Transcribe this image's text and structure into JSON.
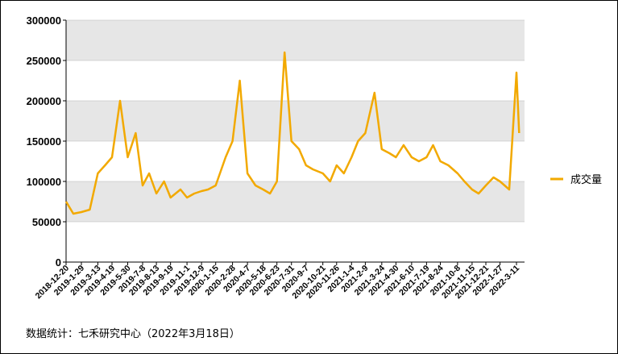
{
  "source_note": "数据统计：七禾研究中心（2022年3月18日）",
  "legend": [
    {
      "label": "成交量",
      "color": "#F2A900"
    }
  ],
  "chart_data": {
    "type": "line",
    "title": "",
    "xlabel": "",
    "ylabel": "",
    "ylim": [
      0,
      300000
    ],
    "yticks": [
      0,
      50000,
      100000,
      150000,
      200000,
      250000,
      300000
    ],
    "ytick_labels": [
      "0",
      "50000",
      "100000",
      "150000",
      "200000",
      "250000",
      "300000"
    ],
    "grid": "horizontal bands",
    "legend_position": "right",
    "xticks": [
      "2018-12-20",
      "2019-1-29",
      "2019-3-13",
      "2019-4-19",
      "2019-5-30",
      "2019-7-8",
      "2019-8-13",
      "2019-9-19",
      "2019-11-1",
      "2019-12-9",
      "2020-1-15",
      "2020-2-28",
      "2020-4-7",
      "2020-5-18",
      "2020-6-23",
      "2020-7-31",
      "2020-9-7",
      "2020-10-21",
      "2020-11-26",
      "2021-1-4",
      "2021-2-9",
      "2021-3-24",
      "2021-4-30",
      "2021-6-10",
      "2021-7-19",
      "2021-8-24",
      "2021-10-8",
      "2021-11-15",
      "2021-12-21",
      "2022-1-27",
      "2022-3-11"
    ],
    "series": [
      {
        "name": "成交量",
        "color": "#F2A900",
        "x": [
          "2018-12-20",
          "2019-1-8",
          "2019-1-29",
          "2019-2-20",
          "2019-3-13",
          "2019-4-1",
          "2019-4-19",
          "2019-5-10",
          "2019-5-30",
          "2019-6-20",
          "2019-7-8",
          "2019-7-25",
          "2019-8-13",
          "2019-9-2",
          "2019-9-19",
          "2019-10-15",
          "2019-11-1",
          "2019-11-20",
          "2019-12-9",
          "2019-12-26",
          "2020-1-15",
          "2020-2-10",
          "2020-2-28",
          "2020-3-18",
          "2020-4-7",
          "2020-4-28",
          "2020-5-18",
          "2020-6-5",
          "2020-6-23",
          "2020-7-13",
          "2020-7-31",
          "2020-8-20",
          "2020-9-7",
          "2020-9-25",
          "2020-10-21",
          "2020-11-9",
          "2020-11-26",
          "2020-12-15",
          "2021-1-4",
          "2021-1-21",
          "2021-2-9",
          "2021-3-5",
          "2021-3-24",
          "2021-4-13",
          "2021-4-30",
          "2021-5-20",
          "2021-6-10",
          "2021-6-29",
          "2021-7-19",
          "2021-8-5",
          "2021-8-24",
          "2021-9-14",
          "2021-10-8",
          "2021-10-26",
          "2021-11-15",
          "2021-12-2",
          "2021-12-21",
          "2022-1-10",
          "2022-1-27",
          "2022-2-20",
          "2022-3-11",
          "2022-3-18"
        ],
        "values": [
          75000,
          60000,
          62000,
          65000,
          110000,
          120000,
          130000,
          200000,
          130000,
          160000,
          95000,
          110000,
          85000,
          100000,
          80000,
          90000,
          80000,
          85000,
          88000,
          90000,
          95000,
          130000,
          150000,
          225000,
          110000,
          95000,
          90000,
          85000,
          100000,
          260000,
          150000,
          140000,
          120000,
          115000,
          110000,
          100000,
          120000,
          110000,
          130000,
          150000,
          160000,
          210000,
          140000,
          135000,
          130000,
          145000,
          130000,
          125000,
          130000,
          145000,
          125000,
          120000,
          110000,
          100000,
          90000,
          85000,
          95000,
          105000,
          100000,
          90000,
          235000,
          160000
        ]
      }
    ]
  }
}
